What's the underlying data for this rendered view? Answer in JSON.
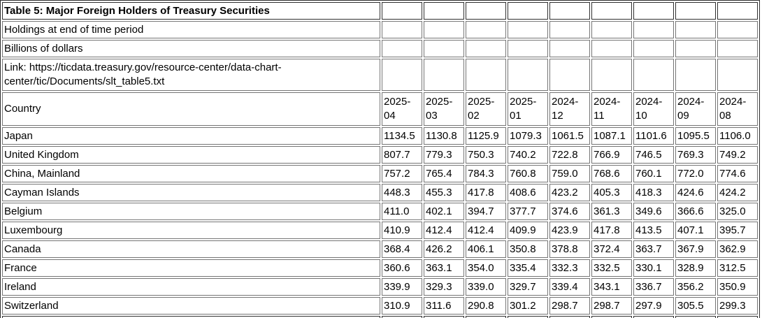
{
  "meta": {
    "title": "Table 5: Major Foreign Holders of Treasury Securities",
    "subtitle1": "Holdings at end of time period",
    "subtitle2": "Billions of dollars",
    "link": "Link: https://ticdata.treasury.gov/resource-center/data-chart-center/tic/Documents/slt_table5.txt"
  },
  "table": {
    "country_header": "Country",
    "columns": [
      "2025-04",
      "2025-03",
      "2025-02",
      "2025-01",
      "2024-12",
      "2024-11",
      "2024-10",
      "2024-09",
      "2024-08"
    ],
    "rows": [
      {
        "country": "Japan",
        "values": [
          "1134.5",
          "1130.8",
          "1125.9",
          "1079.3",
          "1061.5",
          "1087.1",
          "1101.6",
          "1095.5",
          "1106.0"
        ]
      },
      {
        "country": "United Kingdom",
        "values": [
          "807.7",
          "779.3",
          "750.3",
          "740.2",
          "722.8",
          "766.9",
          "746.5",
          "769.3",
          "749.2"
        ]
      },
      {
        "country": "China, Mainland",
        "values": [
          "757.2",
          "765.4",
          "784.3",
          "760.8",
          "759.0",
          "768.6",
          "760.1",
          "772.0",
          "774.6"
        ]
      },
      {
        "country": "Cayman Islands",
        "values": [
          "448.3",
          "455.3",
          "417.8",
          "408.6",
          "423.2",
          "405.3",
          "418.3",
          "424.6",
          "424.2"
        ]
      },
      {
        "country": "Belgium",
        "values": [
          "411.0",
          "402.1",
          "394.7",
          "377.7",
          "374.6",
          "361.3",
          "349.6",
          "366.6",
          "325.0"
        ]
      },
      {
        "country": "Luxembourg",
        "values": [
          "410.9",
          "412.4",
          "412.4",
          "409.9",
          "423.9",
          "417.8",
          "413.5",
          "407.1",
          "395.7"
        ]
      },
      {
        "country": "Canada",
        "values": [
          "368.4",
          "426.2",
          "406.1",
          "350.8",
          "378.8",
          "372.4",
          "363.7",
          "367.9",
          "362.9"
        ]
      },
      {
        "country": "France",
        "values": [
          "360.6",
          "363.1",
          "354.0",
          "335.4",
          "332.3",
          "332.5",
          "330.1",
          "328.9",
          "312.5"
        ]
      },
      {
        "country": "Ireland",
        "values": [
          "339.9",
          "329.3",
          "339.0",
          "329.7",
          "339.4",
          "343.1",
          "336.7",
          "356.2",
          "350.9"
        ]
      },
      {
        "country": "Switzerland",
        "values": [
          "310.9",
          "311.6",
          "290.8",
          "301.2",
          "298.7",
          "298.7",
          "297.9",
          "305.5",
          "299.3"
        ]
      }
    ]
  },
  "style": {
    "outer_border_color": "#2f2f2f",
    "cell_border_color": "#757575",
    "text_color": "#000000",
    "background_color": "#ffffff"
  }
}
